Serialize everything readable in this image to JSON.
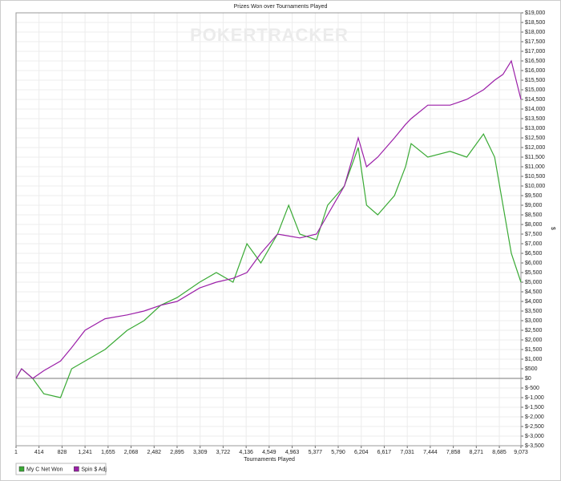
{
  "chart_data": {
    "type": "line",
    "title": "Prizes Won over Tournaments Played",
    "watermark": "POKERTRACKER",
    "x_label": "Tournaments Played",
    "y_label": "$",
    "grid": true,
    "x": [
      1,
      100,
      300,
      500,
      800,
      1000,
      1241,
      1600,
      2000,
      2300,
      2600,
      2895,
      3300,
      3600,
      3900,
      4150,
      4400,
      4700,
      4900,
      5100,
      5400,
      5600,
      5900,
      6150,
      6300,
      6500,
      6800,
      7000,
      7100,
      7400,
      7800,
      8100,
      8400,
      8600,
      8750,
      8900,
      9073
    ],
    "series": [
      {
        "name": "My C Net Won",
        "color": "#3aaa35",
        "values": [
          0,
          500,
          0,
          -800,
          -1000,
          500,
          900,
          1500,
          2500,
          3000,
          3800,
          4200,
          5000,
          5500,
          5000,
          7000,
          6000,
          7500,
          9000,
          7500,
          7200,
          9000,
          10000,
          12000,
          9000,
          8500,
          9500,
          11000,
          12200,
          11500,
          11800,
          11500,
          12700,
          11500,
          9000,
          6500,
          5000
        ]
      },
      {
        "name": "Spin $ Adj",
        "color": "#9b1fa8",
        "values": [
          0,
          500,
          0,
          400,
          900,
          1600,
          2500,
          3100,
          3300,
          3500,
          3800,
          4000,
          4700,
          5000,
          5200,
          5500,
          6500,
          7500,
          7400,
          7300,
          7500,
          8500,
          10000,
          12500,
          11000,
          11500,
          12500,
          13200,
          13500,
          14200,
          14200,
          14500,
          15000,
          15500,
          15800,
          16500,
          14500
        ]
      }
    ],
    "xlim": [
      1,
      9073
    ],
    "xticks": [
      1,
      414,
      828,
      {
        "value": 1241,
        "label": "1,241"
      },
      {
        "value": 1655,
        "label": "1,655"
      },
      {
        "value": 2068,
        "label": "2,068"
      },
      {
        "value": 2482,
        "label": "2,482"
      },
      {
        "value": 2895,
        "label": "2,895"
      },
      {
        "value": 3309,
        "label": "3,309"
      },
      {
        "value": 3722,
        "label": "3,722"
      },
      {
        "value": 4136,
        "label": "4,136"
      },
      {
        "value": 4549,
        "label": "4,549"
      },
      {
        "value": 4963,
        "label": "4,963"
      },
      {
        "value": 5377,
        "label": "5,377"
      },
      {
        "value": 5790,
        "label": "5,790"
      },
      {
        "value": 6204,
        "label": "6,204"
      },
      {
        "value": 6617,
        "label": "6,617"
      },
      {
        "value": 7031,
        "label": "7,031"
      },
      {
        "value": 7444,
        "label": "7,444"
      },
      {
        "value": 7858,
        "label": "7,858"
      },
      {
        "value": 8271,
        "label": "8,271"
      },
      {
        "value": 8685,
        "label": "8,685"
      },
      {
        "value": 9073,
        "label": "9,073"
      }
    ],
    "ylim": [
      -3500,
      19000
    ],
    "yticks": [
      {
        "value": -3500,
        "label": "$-3,500"
      },
      {
        "value": -3000,
        "label": "$-3,000"
      },
      {
        "value": -2500,
        "label": "$-2,500"
      },
      {
        "value": -2000,
        "label": "$-2,000"
      },
      {
        "value": -1500,
        "label": "$-1,500"
      },
      {
        "value": -1000,
        "label": "$-1,000"
      },
      {
        "value": -500,
        "label": "$-500"
      },
      {
        "value": 0,
        "label": "$0"
      },
      {
        "value": 500,
        "label": "$500"
      },
      {
        "value": 1000,
        "label": "$1,000"
      },
      {
        "value": 1500,
        "label": "$1,500"
      },
      {
        "value": 2000,
        "label": "$2,000"
      },
      {
        "value": 2500,
        "label": "$2,500"
      },
      {
        "value": 3000,
        "label": "$3,000"
      },
      {
        "value": 3500,
        "label": "$3,500"
      },
      {
        "value": 4000,
        "label": "$4,000"
      },
      {
        "value": 4500,
        "label": "$4,500"
      },
      {
        "value": 5000,
        "label": "$5,000"
      },
      {
        "value": 5500,
        "label": "$5,500"
      },
      {
        "value": 6000,
        "label": "$6,000"
      },
      {
        "value": 6500,
        "label": "$6,500"
      },
      {
        "value": 7000,
        "label": "$7,000"
      },
      {
        "value": 7500,
        "label": "$7,500"
      },
      {
        "value": 8000,
        "label": "$8,000"
      },
      {
        "value": 8500,
        "label": "$8,500"
      },
      {
        "value": 9000,
        "label": "$9,000"
      },
      {
        "value": 9500,
        "label": "$9,500"
      },
      {
        "value": 10000,
        "label": "$10,000"
      },
      {
        "value": 10500,
        "label": "$10,500"
      },
      {
        "value": 11000,
        "label": "$11,000"
      },
      {
        "value": 11500,
        "label": "$11,500"
      },
      {
        "value": 12000,
        "label": "$12,000"
      },
      {
        "value": 12500,
        "label": "$12,500"
      },
      {
        "value": 13000,
        "label": "$13,000"
      },
      {
        "value": 13500,
        "label": "$13,500"
      },
      {
        "value": 14000,
        "label": "$14,000"
      },
      {
        "value": 14500,
        "label": "$14,500"
      },
      {
        "value": 15000,
        "label": "$15,000"
      },
      {
        "value": 15500,
        "label": "$15,500"
      },
      {
        "value": 16000,
        "label": "$16,000"
      },
      {
        "value": 16500,
        "label": "$16,500"
      },
      {
        "value": 17000,
        "label": "$17,000"
      },
      {
        "value": 17500,
        "label": "$17,500"
      },
      {
        "value": 18000,
        "label": "$18,000"
      },
      {
        "value": 18500,
        "label": "$18,500"
      },
      {
        "value": 19000,
        "label": "$19,000"
      }
    ]
  }
}
